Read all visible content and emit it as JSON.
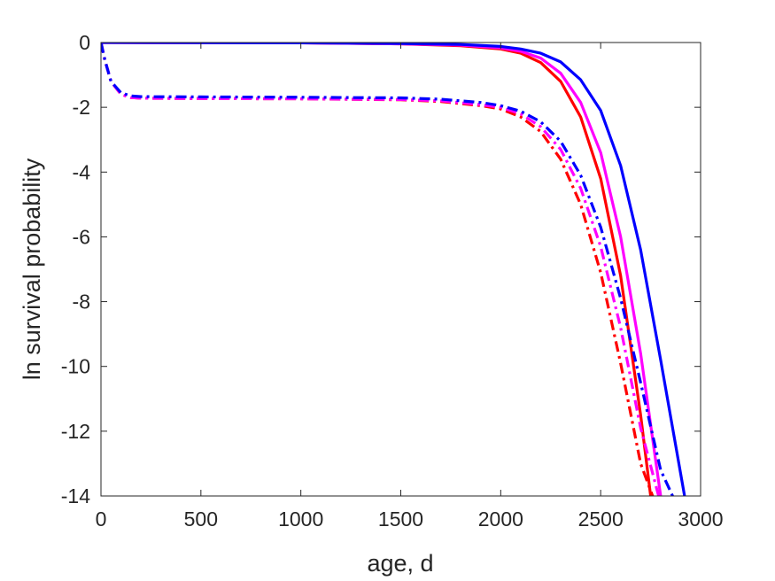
{
  "chart_data": {
    "type": "line",
    "xlabel": "age, d",
    "ylabel": "ln survival probability",
    "xlim": [
      0,
      3000
    ],
    "ylim": [
      -14,
      0
    ],
    "xticks": [
      0,
      500,
      1000,
      1500,
      2000,
      2500,
      3000
    ],
    "yticks": [
      0,
      -2,
      -4,
      -6,
      -8,
      -10,
      -12,
      -14
    ],
    "xtick_labels": [
      "0",
      "500",
      "1000",
      "1500",
      "2000",
      "2500",
      "3000"
    ],
    "ytick_labels": [
      "0",
      "-2",
      "-4",
      "-6",
      "-8",
      "-10",
      "-12",
      "-14"
    ],
    "grid": false,
    "legend": "none",
    "series": [
      {
        "color": "#ff0000",
        "style": "solid",
        "x": [
          0,
          1000,
          1500,
          1800,
          2000,
          2100,
          2200,
          2300,
          2400,
          2500,
          2600,
          2700,
          2750
        ],
        "y": [
          0,
          -0.01,
          -0.04,
          -0.1,
          -0.2,
          -0.33,
          -0.62,
          -1.2,
          -2.3,
          -4.2,
          -7.2,
          -11.5,
          -14
        ]
      },
      {
        "color": "#ff00ff",
        "style": "solid",
        "x": [
          0,
          1000,
          1500,
          1800,
          2000,
          2100,
          2200,
          2300,
          2400,
          2500,
          2600,
          2700,
          2800
        ],
        "y": [
          0,
          -0.01,
          -0.04,
          -0.08,
          -0.17,
          -0.27,
          -0.48,
          -0.95,
          -1.85,
          -3.4,
          -6.0,
          -9.6,
          -14
        ]
      },
      {
        "color": "#0000ff",
        "style": "solid",
        "x": [
          0,
          1000,
          1500,
          1800,
          2000,
          2100,
          2200,
          2300,
          2400,
          2500,
          2600,
          2700,
          2800,
          2920
        ],
        "y": [
          0,
          -0.01,
          -0.03,
          -0.06,
          -0.12,
          -0.2,
          -0.33,
          -0.6,
          -1.15,
          -2.1,
          -3.8,
          -6.4,
          -9.8,
          -14
        ]
      },
      {
        "color": "#ff0000",
        "style": "dashdot",
        "x": [
          0,
          20,
          50,
          100,
          150,
          200,
          500,
          1000,
          1500,
          1700,
          1900,
          2000,
          2100,
          2200,
          2300,
          2400,
          2500,
          2600,
          2700,
          2760
        ],
        "y": [
          0,
          -0.55,
          -1.2,
          -1.6,
          -1.7,
          -1.72,
          -1.73,
          -1.74,
          -1.77,
          -1.82,
          -1.95,
          -2.05,
          -2.3,
          -2.75,
          -3.6,
          -5.0,
          -7.1,
          -9.9,
          -13.0,
          -14
        ]
      },
      {
        "color": "#ff00ff",
        "style": "dashdot",
        "x": [
          0,
          20,
          50,
          100,
          150,
          200,
          500,
          1000,
          1500,
          1700,
          1900,
          2000,
          2100,
          2200,
          2300,
          2400,
          2500,
          2600,
          2700,
          2790
        ],
        "y": [
          0,
          -0.55,
          -1.2,
          -1.6,
          -1.7,
          -1.72,
          -1.73,
          -1.74,
          -1.76,
          -1.8,
          -1.92,
          -2.0,
          -2.2,
          -2.6,
          -3.3,
          -4.5,
          -6.3,
          -8.8,
          -11.9,
          -14
        ]
      },
      {
        "color": "#0000ff",
        "style": "dashdot",
        "x": [
          0,
          20,
          50,
          100,
          150,
          200,
          500,
          1000,
          1500,
          1700,
          1900,
          2000,
          2100,
          2200,
          2300,
          2400,
          2500,
          2600,
          2700,
          2800,
          2860
        ],
        "y": [
          0,
          -0.55,
          -1.2,
          -1.55,
          -1.65,
          -1.67,
          -1.68,
          -1.69,
          -1.71,
          -1.75,
          -1.85,
          -1.95,
          -2.12,
          -2.45,
          -3.05,
          -4.1,
          -5.7,
          -7.9,
          -10.5,
          -13.2,
          -14
        ]
      }
    ]
  }
}
